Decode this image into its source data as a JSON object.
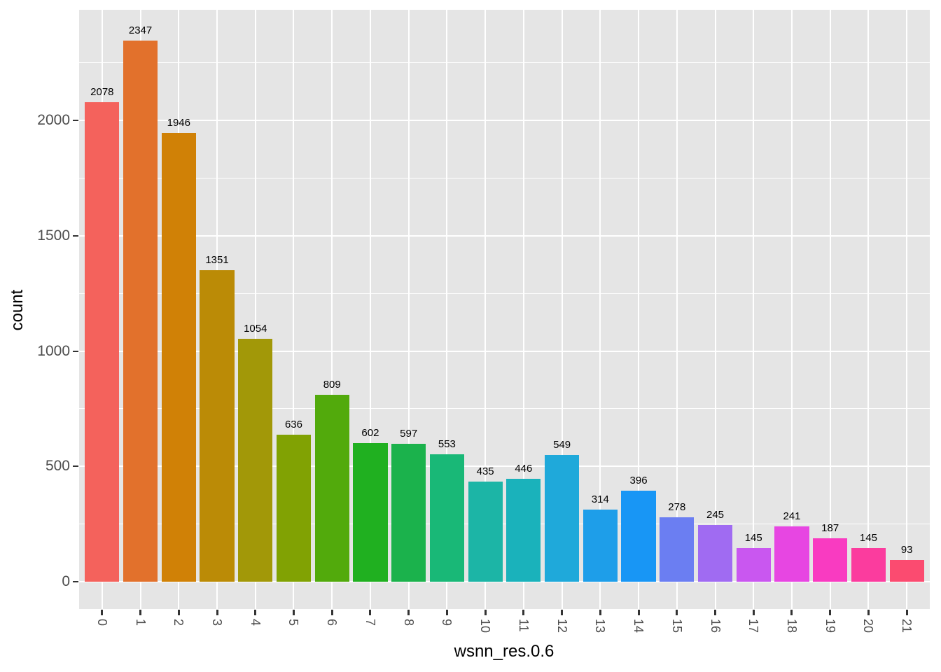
{
  "chart_data": {
    "type": "bar",
    "title": "",
    "xlabel": "wsnn_res.0.6",
    "ylabel": "count",
    "categories": [
      "0",
      "1",
      "2",
      "3",
      "4",
      "5",
      "6",
      "7",
      "8",
      "9",
      "10",
      "11",
      "12",
      "13",
      "14",
      "15",
      "16",
      "17",
      "18",
      "19",
      "20",
      "21"
    ],
    "values": [
      2078,
      2347,
      1946,
      1351,
      1054,
      636,
      809,
      602,
      597,
      553,
      435,
      446,
      549,
      314,
      396,
      278,
      245,
      145,
      241,
      187,
      145,
      93
    ],
    "bar_colors": [
      "#F4625C",
      "#E2712C",
      "#D08106",
      "#BB8B06",
      "#A29808",
      "#81A203",
      "#52AA0C",
      "#20B020",
      "#1BB24C",
      "#19B877",
      "#1CB5A6",
      "#1AB2BB",
      "#1FA9DA",
      "#1E9EE9",
      "#1896F5",
      "#6B7EF2",
      "#A06BF2",
      "#C957F0",
      "#E746E2",
      "#F93BC1",
      "#FB3C9E",
      "#FB4B70"
    ],
    "y_major_ticks": [
      0,
      500,
      1000,
      1500,
      2000
    ],
    "y_minor_gridlines": [
      250,
      750,
      1250,
      1750,
      2250
    ],
    "ylim": [
      -118,
      2480
    ],
    "grid": true,
    "legend_position": "none",
    "panel_bg": "#E5E5E5",
    "grid_color": "#FFFFFF",
    "tick_color": "#333333",
    "axis_text_color": "#4D4D4D",
    "value_label_color": "#000000"
  }
}
